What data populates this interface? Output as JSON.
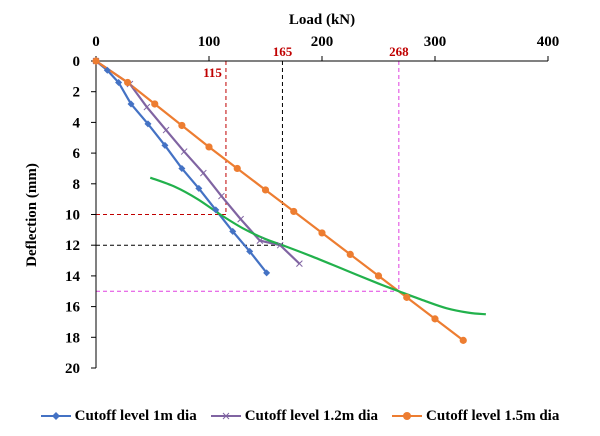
{
  "chart_data": {
    "type": "line",
    "title": "",
    "xlabel": "Load (kN)",
    "ylabel": "Deflection (mm)",
    "xlim": [
      0,
      400
    ],
    "ylim": [
      0,
      20
    ],
    "y_inverted": true,
    "x_axis_position": "top",
    "xticks": [
      0,
      100,
      200,
      300,
      400
    ],
    "yticks": [
      0,
      2,
      4,
      6,
      8,
      10,
      12,
      14,
      16,
      18,
      20
    ],
    "grid": false,
    "legend_position": "bottom",
    "series": [
      {
        "name": "Cutoff level 1m dia",
        "color": "#4472C4",
        "marker": "diamond",
        "x": [
          0,
          10,
          20,
          31,
          46,
          61,
          76,
          91,
          106,
          121,
          136,
          151
        ],
        "y": [
          0,
          0.6,
          1.4,
          2.8,
          4.1,
          5.5,
          7.0,
          8.3,
          9.7,
          11.1,
          12.4,
          13.8
        ]
      },
      {
        "name": "Cutoff level 1.2m dia",
        "color": "#8064A2",
        "marker": "x",
        "x": [
          0,
          30,
          45,
          62,
          78,
          95,
          111,
          128,
          145,
          163,
          180
        ],
        "y": [
          0,
          1.5,
          3.0,
          4.5,
          5.9,
          7.3,
          8.8,
          10.3,
          11.7,
          12.0,
          13.2
        ]
      },
      {
        "name": "Cutoff level 1.5m dia",
        "color": "#ED7D31",
        "marker": "circle",
        "x": [
          0,
          28,
          52,
          76,
          100,
          125,
          150,
          175,
          200,
          225,
          250,
          275,
          300,
          325
        ],
        "y": [
          0,
          1.4,
          2.8,
          4.2,
          5.6,
          7.0,
          8.4,
          9.8,
          11.2,
          12.6,
          14.0,
          15.4,
          16.8,
          18.2
        ]
      },
      {
        "name": "",
        "color": "#22B14C",
        "marker": "none",
        "x": [
          48,
          70,
          90,
          110,
          130,
          150,
          165,
          190,
          220,
          250,
          268,
          290,
          310,
          330,
          345
        ],
        "y": [
          7.6,
          8.2,
          9.0,
          10.0,
          10.9,
          11.6,
          12.0,
          12.7,
          13.6,
          14.5,
          15.0,
          15.6,
          16.1,
          16.4,
          16.5
        ]
      }
    ],
    "annotations": [
      {
        "label": "115",
        "x": 115,
        "y": 10,
        "color": "#C00000"
      },
      {
        "label": "165",
        "x": 165,
        "y": 12,
        "color": "#000000"
      },
      {
        "label": "268",
        "x": 268,
        "y": 15,
        "color": "#E040E0"
      }
    ]
  }
}
